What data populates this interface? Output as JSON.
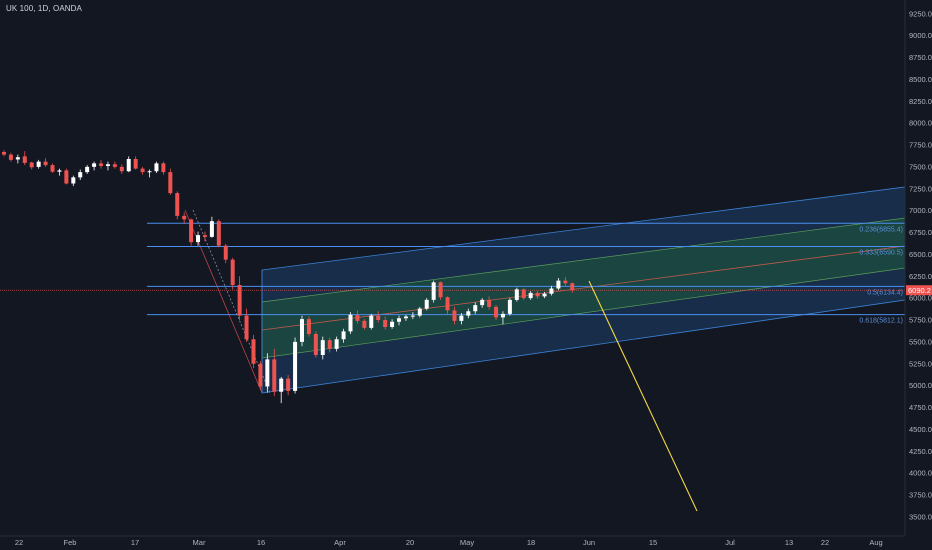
{
  "header": {
    "symbol": "UK 100, 1D, OANDA"
  },
  "colors": {
    "background": "#131722",
    "up": "#ffffff",
    "down": "#ef5350",
    "level_line": "#4a8ef0",
    "fib_label": "#5b8fd9",
    "channel_outer_fill": "#1e4a7a",
    "channel_inner_fill": "#1e5a3a",
    "channel_median": "#c25a4a",
    "projection": "#f5d742",
    "price_badge": "#ef5350",
    "axis_text": "#b2b5be"
  },
  "chart_data": {
    "type": "candlestick",
    "ylim": [
      3350,
      9350
    ],
    "y_ticks": [
      "9250.0",
      "9000.0",
      "8750.0",
      "8500.0",
      "8250.0",
      "8000.0",
      "7750.0",
      "7500.0",
      "7250.0",
      "7000.0",
      "6750.0",
      "6500.0",
      "6250.0",
      "6000.0",
      "5750.0",
      "5500.0",
      "5250.0",
      "5000.0",
      "4750.0",
      "4500.0",
      "4250.0",
      "4000.0",
      "3750.0",
      "3500.0"
    ],
    "x_ticks": [
      "22",
      "Feb",
      "17",
      "Mar",
      "16",
      "Apr",
      "20",
      "May",
      "18",
      "Jun",
      "15",
      "Jul",
      "13",
      "22",
      "Aug"
    ],
    "current_price": "6090.2",
    "levels": [
      {
        "label": "0.236(6855.4)",
        "value": 6855.4
      },
      {
        "label": "0.333(6590.5)",
        "value": 6590.5
      },
      {
        "label": "0.5(6134.4)",
        "value": 6134.4
      },
      {
        "label": "0.618(5812.1)",
        "value": 5812.1
      }
    ],
    "candles": [
      [
        7670,
        7690,
        7620,
        7640
      ],
      [
        7640,
        7660,
        7560,
        7580
      ],
      [
        7585,
        7640,
        7540,
        7610
      ],
      [
        7620,
        7680,
        7520,
        7545
      ],
      [
        7550,
        7560,
        7470,
        7495
      ],
      [
        7500,
        7580,
        7480,
        7560
      ],
      [
        7560,
        7600,
        7500,
        7520
      ],
      [
        7520,
        7540,
        7430,
        7445
      ],
      [
        7445,
        7480,
        7400,
        7460
      ],
      [
        7460,
        7480,
        7300,
        7310
      ],
      [
        7310,
        7400,
        7280,
        7380
      ],
      [
        7380,
        7470,
        7350,
        7440
      ],
      [
        7440,
        7520,
        7420,
        7500
      ],
      [
        7500,
        7560,
        7460,
        7540
      ],
      [
        7540,
        7580,
        7480,
        7510
      ],
      [
        7510,
        7560,
        7460,
        7530
      ],
      [
        7530,
        7560,
        7480,
        7500
      ],
      [
        7500,
        7530,
        7420,
        7450
      ],
      [
        7450,
        7620,
        7440,
        7590
      ],
      [
        7590,
        7620,
        7470,
        7480
      ],
      [
        7480,
        7500,
        7410,
        7440
      ],
      [
        7440,
        7470,
        7380,
        7450
      ],
      [
        7450,
        7560,
        7430,
        7540
      ],
      [
        7540,
        7560,
        7410,
        7440
      ],
      [
        7440,
        7480,
        7180,
        7200
      ],
      [
        7200,
        7220,
        6900,
        6940
      ],
      [
        6940,
        6980,
        6850,
        6900
      ],
      [
        6900,
        6910,
        6600,
        6640
      ],
      [
        6640,
        6760,
        6600,
        6720
      ],
      [
        6720,
        6760,
        6650,
        6700
      ],
      [
        6700,
        6930,
        6690,
        6880
      ],
      [
        6880,
        6900,
        6580,
        6600
      ],
      [
        6600,
        6620,
        6400,
        6440
      ],
      [
        6440,
        6460,
        6100,
        6150
      ],
      [
        6150,
        6250,
        5750,
        5800
      ],
      [
        5800,
        5880,
        5500,
        5530
      ],
      [
        5530,
        5580,
        5200,
        5250
      ],
      [
        5250,
        5280,
        4950,
        4990
      ],
      [
        4990,
        5370,
        4920,
        5300
      ],
      [
        5300,
        5420,
        4880,
        4930
      ],
      [
        4930,
        5100,
        4800,
        5080
      ],
      [
        5080,
        5120,
        4890,
        4940
      ],
      [
        4940,
        5550,
        4910,
        5500
      ],
      [
        5500,
        5800,
        5450,
        5760
      ],
      [
        5760,
        5790,
        5560,
        5590
      ],
      [
        5590,
        5620,
        5320,
        5350
      ],
      [
        5350,
        5560,
        5300,
        5520
      ],
      [
        5520,
        5550,
        5380,
        5420
      ],
      [
        5420,
        5560,
        5390,
        5530
      ],
      [
        5530,
        5650,
        5490,
        5620
      ],
      [
        5620,
        5840,
        5590,
        5810
      ],
      [
        5810,
        5860,
        5710,
        5740
      ],
      [
        5740,
        5760,
        5640,
        5660
      ],
      [
        5660,
        5820,
        5640,
        5800
      ],
      [
        5800,
        5850,
        5720,
        5750
      ],
      [
        5750,
        5790,
        5640,
        5670
      ],
      [
        5670,
        5760,
        5650,
        5730
      ],
      [
        5730,
        5800,
        5690,
        5770
      ],
      [
        5770,
        5810,
        5740,
        5790
      ],
      [
        5790,
        5840,
        5760,
        5800
      ],
      [
        5800,
        5900,
        5780,
        5880
      ],
      [
        5880,
        6000,
        5860,
        5980
      ],
      [
        5980,
        6200,
        5950,
        6180
      ],
      [
        6180,
        6190,
        5980,
        6010
      ],
      [
        6010,
        6020,
        5820,
        5860
      ],
      [
        5860,
        5900,
        5700,
        5740
      ],
      [
        5740,
        5830,
        5700,
        5800
      ],
      [
        5800,
        5880,
        5770,
        5850
      ],
      [
        5850,
        5950,
        5820,
        5920
      ],
      [
        5920,
        6000,
        5890,
        5980
      ],
      [
        5980,
        6020,
        5870,
        5900
      ],
      [
        5900,
        5920,
        5750,
        5780
      ],
      [
        5780,
        5850,
        5700,
        5820
      ],
      [
        5820,
        6000,
        5800,
        5980
      ],
      [
        5980,
        6120,
        5960,
        6100
      ],
      [
        6100,
        6110,
        5980,
        6000
      ],
      [
        6000,
        6080,
        5980,
        6060
      ],
      [
        6060,
        6080,
        5990,
        6020
      ],
      [
        6020,
        6070,
        6000,
        6050
      ],
      [
        6050,
        6140,
        6030,
        6110
      ],
      [
        6110,
        6230,
        6090,
        6200
      ],
      [
        6200,
        6240,
        6140,
        6170
      ],
      [
        6170,
        6180,
        6060,
        6090
      ]
    ]
  }
}
